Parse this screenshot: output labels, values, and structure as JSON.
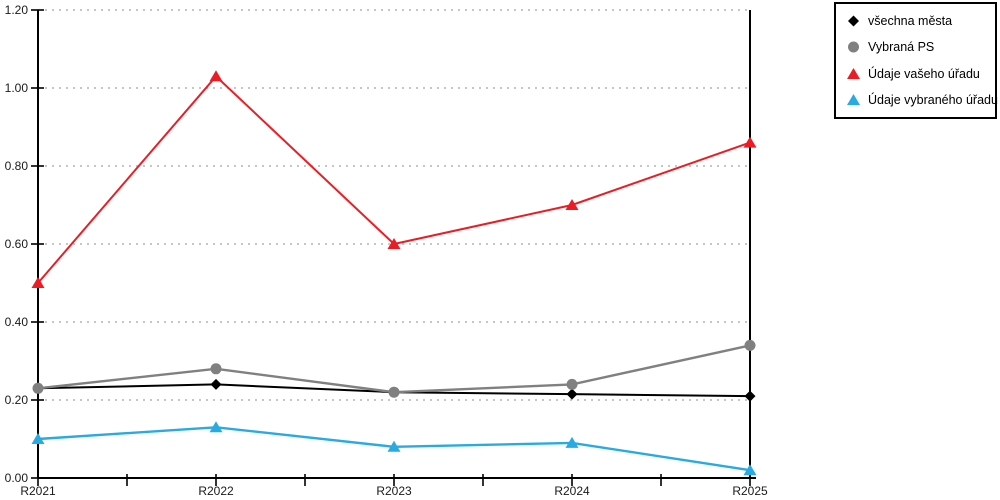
{
  "chart_data": {
    "type": "line",
    "title": "",
    "xlabel": "",
    "ylabel": "",
    "categories": [
      "R2021",
      "R2022",
      "R2023",
      "R2024",
      "R2025"
    ],
    "series": [
      {
        "name": "všechna města",
        "marker": "diamond",
        "color": "#000000",
        "values": [
          0.23,
          0.24,
          0.22,
          0.215,
          0.21
        ]
      },
      {
        "name": "Vybraná PS",
        "marker": "circle",
        "color": "#808080",
        "values": [
          0.23,
          0.28,
          0.22,
          0.24,
          0.34
        ]
      },
      {
        "name": "Údaje vašeho úřadu",
        "marker": "triangle",
        "color": "#ed1c24",
        "values": [
          0.5,
          1.03,
          0.6,
          0.7,
          0.86
        ]
      },
      {
        "name": "Údaje vybraného úřadu",
        "marker": "triangle",
        "color": "#29abe2",
        "values": [
          0.1,
          0.13,
          0.08,
          0.09,
          0.02
        ]
      }
    ],
    "ylim": [
      0,
      1.2
    ],
    "y_ticks": [
      "0.00",
      "0.20",
      "0.40",
      "0.60",
      "0.80",
      "1.00",
      "1.20"
    ],
    "grid": "horizontal-dotted",
    "gridline_color": "#b3b3b3",
    "axis_color": "#000000",
    "legend_position": "top-right"
  }
}
